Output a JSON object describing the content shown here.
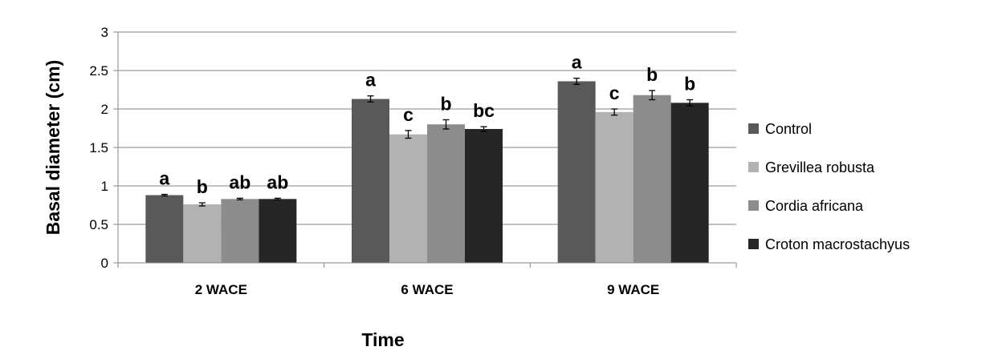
{
  "chart_data": {
    "type": "bar",
    "title": "",
    "xlabel": "Time",
    "ylabel": "Basal diameter (cm)",
    "ylim": [
      0,
      3
    ],
    "yticks": [
      0,
      0.5,
      1,
      1.5,
      2,
      2.5,
      3
    ],
    "ytick_labels": [
      "0",
      "0.5",
      "1",
      "1.5",
      "2",
      "2.5",
      "3"
    ],
    "grid": true,
    "legend_position": "right",
    "categories": [
      "2 WACE",
      "6 WACE",
      "9 WACE"
    ],
    "series": [
      {
        "name": "Control",
        "color": "#595959",
        "values": [
          0.88,
          2.13,
          2.36
        ],
        "errors": [
          0.01,
          0.04,
          0.04
        ],
        "labels": [
          "a",
          "a",
          "a"
        ]
      },
      {
        "name": "Grevillea robusta",
        "color": "#b2b2b2",
        "values": [
          0.76,
          1.67,
          1.96
        ],
        "errors": [
          0.02,
          0.05,
          0.04
        ],
        "labels": [
          "b",
          "c",
          "c"
        ]
      },
      {
        "name": "Cordia africana",
        "color": "#8c8c8c",
        "values": [
          0.83,
          1.8,
          2.18
        ],
        "errors": [
          0.01,
          0.06,
          0.06
        ],
        "labels": [
          "ab",
          "b",
          "b"
        ]
      },
      {
        "name": "Croton macrostachyus",
        "color": "#262626",
        "values": [
          0.83,
          1.74,
          2.08
        ],
        "errors": [
          0.01,
          0.03,
          0.04
        ],
        "labels": [
          "ab",
          "bc",
          "b"
        ]
      }
    ]
  }
}
